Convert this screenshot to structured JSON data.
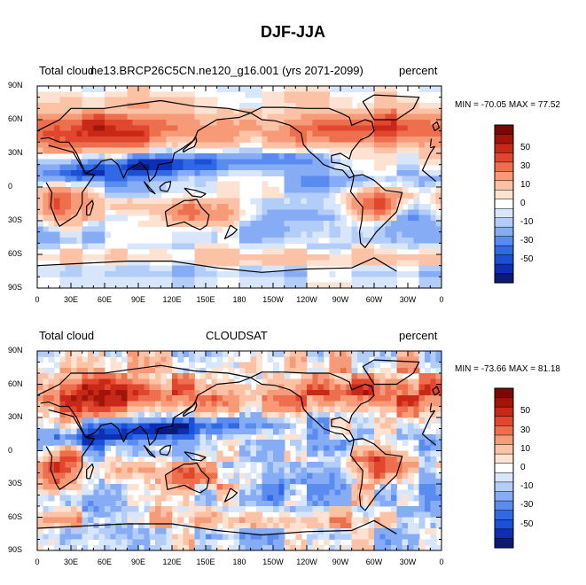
{
  "figure_title": "DJF-JJA",
  "palette": [
    "#0b1a7a",
    "#0d2fb5",
    "#1b4fd6",
    "#2f69e6",
    "#5a8cf0",
    "#86acf5",
    "#b3cdf9",
    "#d8e6fc",
    "#ffffff",
    "#fde2d2",
    "#fbc2a6",
    "#f69a78",
    "#ee6f4e",
    "#e0472e",
    "#c72818",
    "#a11409",
    "#7a0803"
  ],
  "chart_data": [
    {
      "type": "heatmap",
      "panel": "top",
      "left_label": "Total cloud",
      "center_label": "ne13.BRCP26C5CN.ne120_g16.001 (yrs 2071-2099)",
      "right_label": "percent",
      "stats": "MIN = -70.05 MAX =  77.52",
      "y_ticks": [
        "90N",
        "60N",
        "30N",
        "0",
        "30S",
        "60S",
        "90S"
      ],
      "x_ticks": [
        "0",
        "30E",
        "60E",
        "90E",
        "120E",
        "150E",
        "180",
        "150W",
        "120W",
        "90W",
        "60W",
        "30W",
        "0"
      ],
      "colorbar_labels": [
        "50",
        "30",
        "10",
        "0",
        "-10",
        "-30",
        "-50"
      ],
      "xlim": [
        0,
        360
      ],
      "ylim": [
        -90,
        90
      ],
      "min": -70.05,
      "max": 77.52
    },
    {
      "type": "heatmap",
      "panel": "bottom",
      "left_label": "Total cloud",
      "center_label": "CLOUDSAT",
      "right_label": "percent",
      "stats": "MIN = -73.66 MAX =  81.18",
      "y_ticks": [
        "90N",
        "60N",
        "30N",
        "0",
        "30S",
        "60S",
        "90S"
      ],
      "x_ticks": [
        "0",
        "30E",
        "60E",
        "90E",
        "120E",
        "150E",
        "180",
        "150W",
        "120W",
        "90W",
        "60W",
        "30W",
        "0"
      ],
      "colorbar_labels": [
        "50",
        "30",
        "10",
        "0",
        "-10",
        "-30",
        "-50"
      ],
      "xlim": [
        0,
        360
      ],
      "ylim": [
        -90,
        90
      ],
      "min": -73.66,
      "max": 81.18
    }
  ]
}
